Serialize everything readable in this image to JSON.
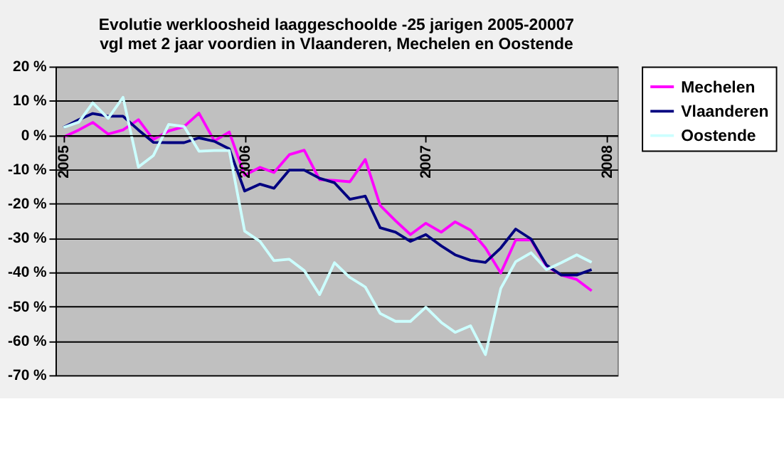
{
  "chart_data": {
    "type": "line",
    "title": [
      "Evolutie werkloosheid laaggeschoolde -25 jarigen 2005-20007",
      "vgl met 2 jaar voordien in  Vlaanderen, Mechelen en Oostende"
    ],
    "x": [
      "2005-01",
      "2005-02",
      "2005-03",
      "2005-04",
      "2005-05",
      "2005-06",
      "2005-07",
      "2005-08",
      "2005-09",
      "2005-10",
      "2005-11",
      "2005-12",
      "2006-01",
      "2006-02",
      "2006-03",
      "2006-04",
      "2006-05",
      "2006-06",
      "2006-07",
      "2006-08",
      "2006-09",
      "2006-10",
      "2006-11",
      "2006-12",
      "2007-01",
      "2007-02",
      "2007-03",
      "2007-04",
      "2007-05",
      "2007-06",
      "2007-07",
      "2007-08",
      "2007-09",
      "2007-10",
      "2007-11",
      "2007-12"
    ],
    "series": [
      {
        "name": "Mechelen",
        "color": "#ff00ff",
        "values": [
          -0.6,
          1.5,
          3.7,
          0.3,
          1.5,
          4.5,
          -1.3,
          1.2,
          2.5,
          6.4,
          -1.7,
          0.9,
          -11.7,
          -9.4,
          -10.9,
          -5.7,
          -4.4,
          -13,
          -13.2,
          -13.6,
          -7.1,
          -20.5,
          -25,
          -29,
          -25.7,
          -28.3,
          -25.3,
          -27.7,
          -32.9,
          -40.2,
          -30.6,
          -30.6,
          -38.2,
          -40.8,
          -42.1,
          -45.4
        ]
      },
      {
        "name": "Vlaanderen",
        "color": "#000080",
        "values": [
          2.2,
          4.5,
          6.3,
          5.5,
          5.5,
          1.5,
          -2.1,
          -2.2,
          -2.2,
          -0.8,
          -1.8,
          -4,
          -16.3,
          -14.3,
          -15.5,
          -10.2,
          -10.2,
          -12.6,
          -13.9,
          -18.7,
          -17.8,
          -27,
          -28.3,
          -31,
          -29,
          -32.3,
          -34.9,
          -36.5,
          -37.1,
          -32.9,
          -27.4,
          -30.3,
          -37.9,
          -40.8,
          -40.8,
          -39.2
        ]
      },
      {
        "name": "Oostende",
        "color": "#ccffff",
        "values": [
          2.2,
          3.8,
          9.4,
          4.9,
          11,
          -9.3,
          -6,
          3.1,
          2.5,
          -4.7,
          -4.5,
          -4.5,
          -28,
          -31,
          -36.6,
          -36.2,
          -39.5,
          -46.5,
          -37.2,
          -41.5,
          -44.3,
          -52,
          -54.3,
          -54.3,
          -50.2,
          -54.6,
          -57.5,
          -55.6,
          -64,
          -44.7,
          -36.9,
          -34.3,
          -39.2,
          -37.2,
          -34.9,
          -37.1
        ]
      }
    ],
    "xlim": [
      "2004-12-16",
      "2008-01-22"
    ],
    "xticks": [
      "2005",
      "2006",
      "2007",
      "2008"
    ],
    "ylim": [
      -70,
      20
    ],
    "yticks": [
      {
        "value": 20,
        "label": "20 %"
      },
      {
        "value": 10,
        "label": "10 %"
      },
      {
        "value": 0,
        "label": "0 %"
      },
      {
        "value": -10,
        "label": "-10 %"
      },
      {
        "value": -20,
        "label": "-20 %"
      },
      {
        "value": -30,
        "label": "-30 %"
      },
      {
        "value": -40,
        "label": "-40 %"
      },
      {
        "value": -50,
        "label": "-50 %"
      },
      {
        "value": -60,
        "label": "-60 %"
      },
      {
        "value": -70,
        "label": "-70 %"
      }
    ],
    "grid": "y",
    "legend": "right",
    "marker": "none",
    "line_style": "solid"
  }
}
